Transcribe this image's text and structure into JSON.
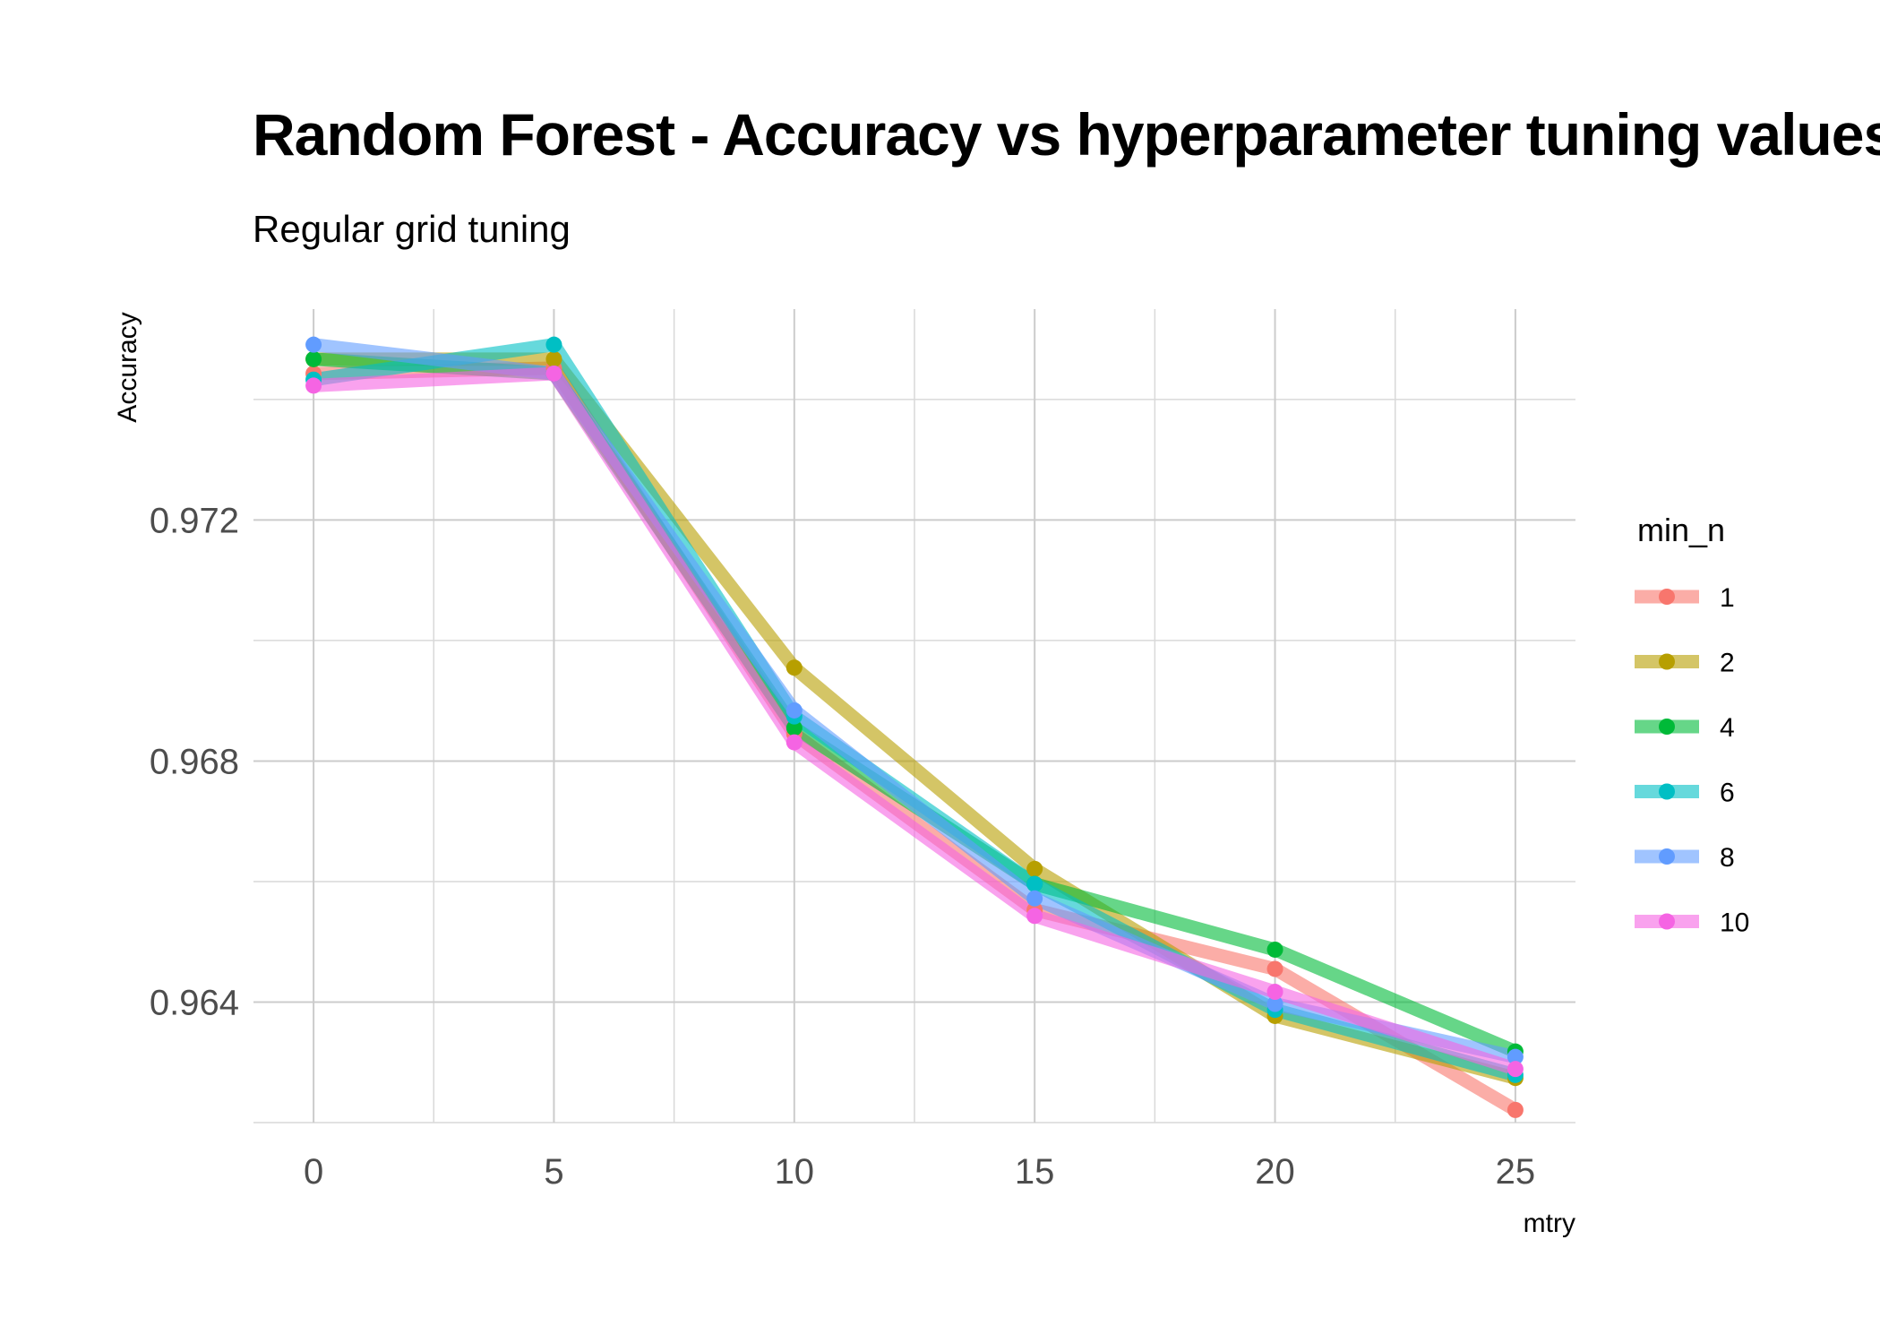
{
  "chart_data": {
    "type": "line",
    "title": "Random Forest - Accuracy vs hyperparameter tuning values",
    "subtitle": "Regular grid tuning",
    "xlabel": "mtry",
    "ylabel": "Accuracy",
    "x": [
      0,
      5,
      10,
      15,
      20,
      25
    ],
    "xlim": [
      -1.25,
      26.25
    ],
    "ylim": [
      0.962,
      0.9755
    ],
    "x_ticks": [
      0,
      5,
      10,
      15,
      20,
      25
    ],
    "y_ticks": [
      0.964,
      0.968,
      0.972
    ],
    "x_tick_labels": [
      "0",
      "5",
      "10",
      "15",
      "20",
      "25"
    ],
    "y_tick_labels": [
      "0.964",
      "0.968",
      "0.972"
    ],
    "grid": true,
    "legend": {
      "title": "min_n",
      "position": "right"
    },
    "series": [
      {
        "name": "1",
        "color": "#F8766D",
        "values": [
          0.97443,
          0.97452,
          0.96845,
          0.96553,
          0.96455,
          0.96221
        ]
      },
      {
        "name": "2",
        "color": "#B79F00",
        "values": [
          0.97467,
          0.97467,
          0.96955,
          0.96621,
          0.96377,
          0.96274
        ]
      },
      {
        "name": "4",
        "color": "#00BA38",
        "values": [
          0.97467,
          0.97443,
          0.96855,
          0.96596,
          0.96487,
          0.96318
        ]
      },
      {
        "name": "6",
        "color": "#00BFC4",
        "values": [
          0.97433,
          0.97491,
          0.96874,
          0.96596,
          0.96387,
          0.96279
        ]
      },
      {
        "name": "8",
        "color": "#619CFF",
        "values": [
          0.97491,
          0.97443,
          0.96884,
          0.96572,
          0.96397,
          0.96309
        ]
      },
      {
        "name": "10",
        "color": "#F564E3",
        "values": [
          0.97423,
          0.97443,
          0.96831,
          0.96543,
          0.96417,
          0.96289
        ]
      }
    ]
  }
}
